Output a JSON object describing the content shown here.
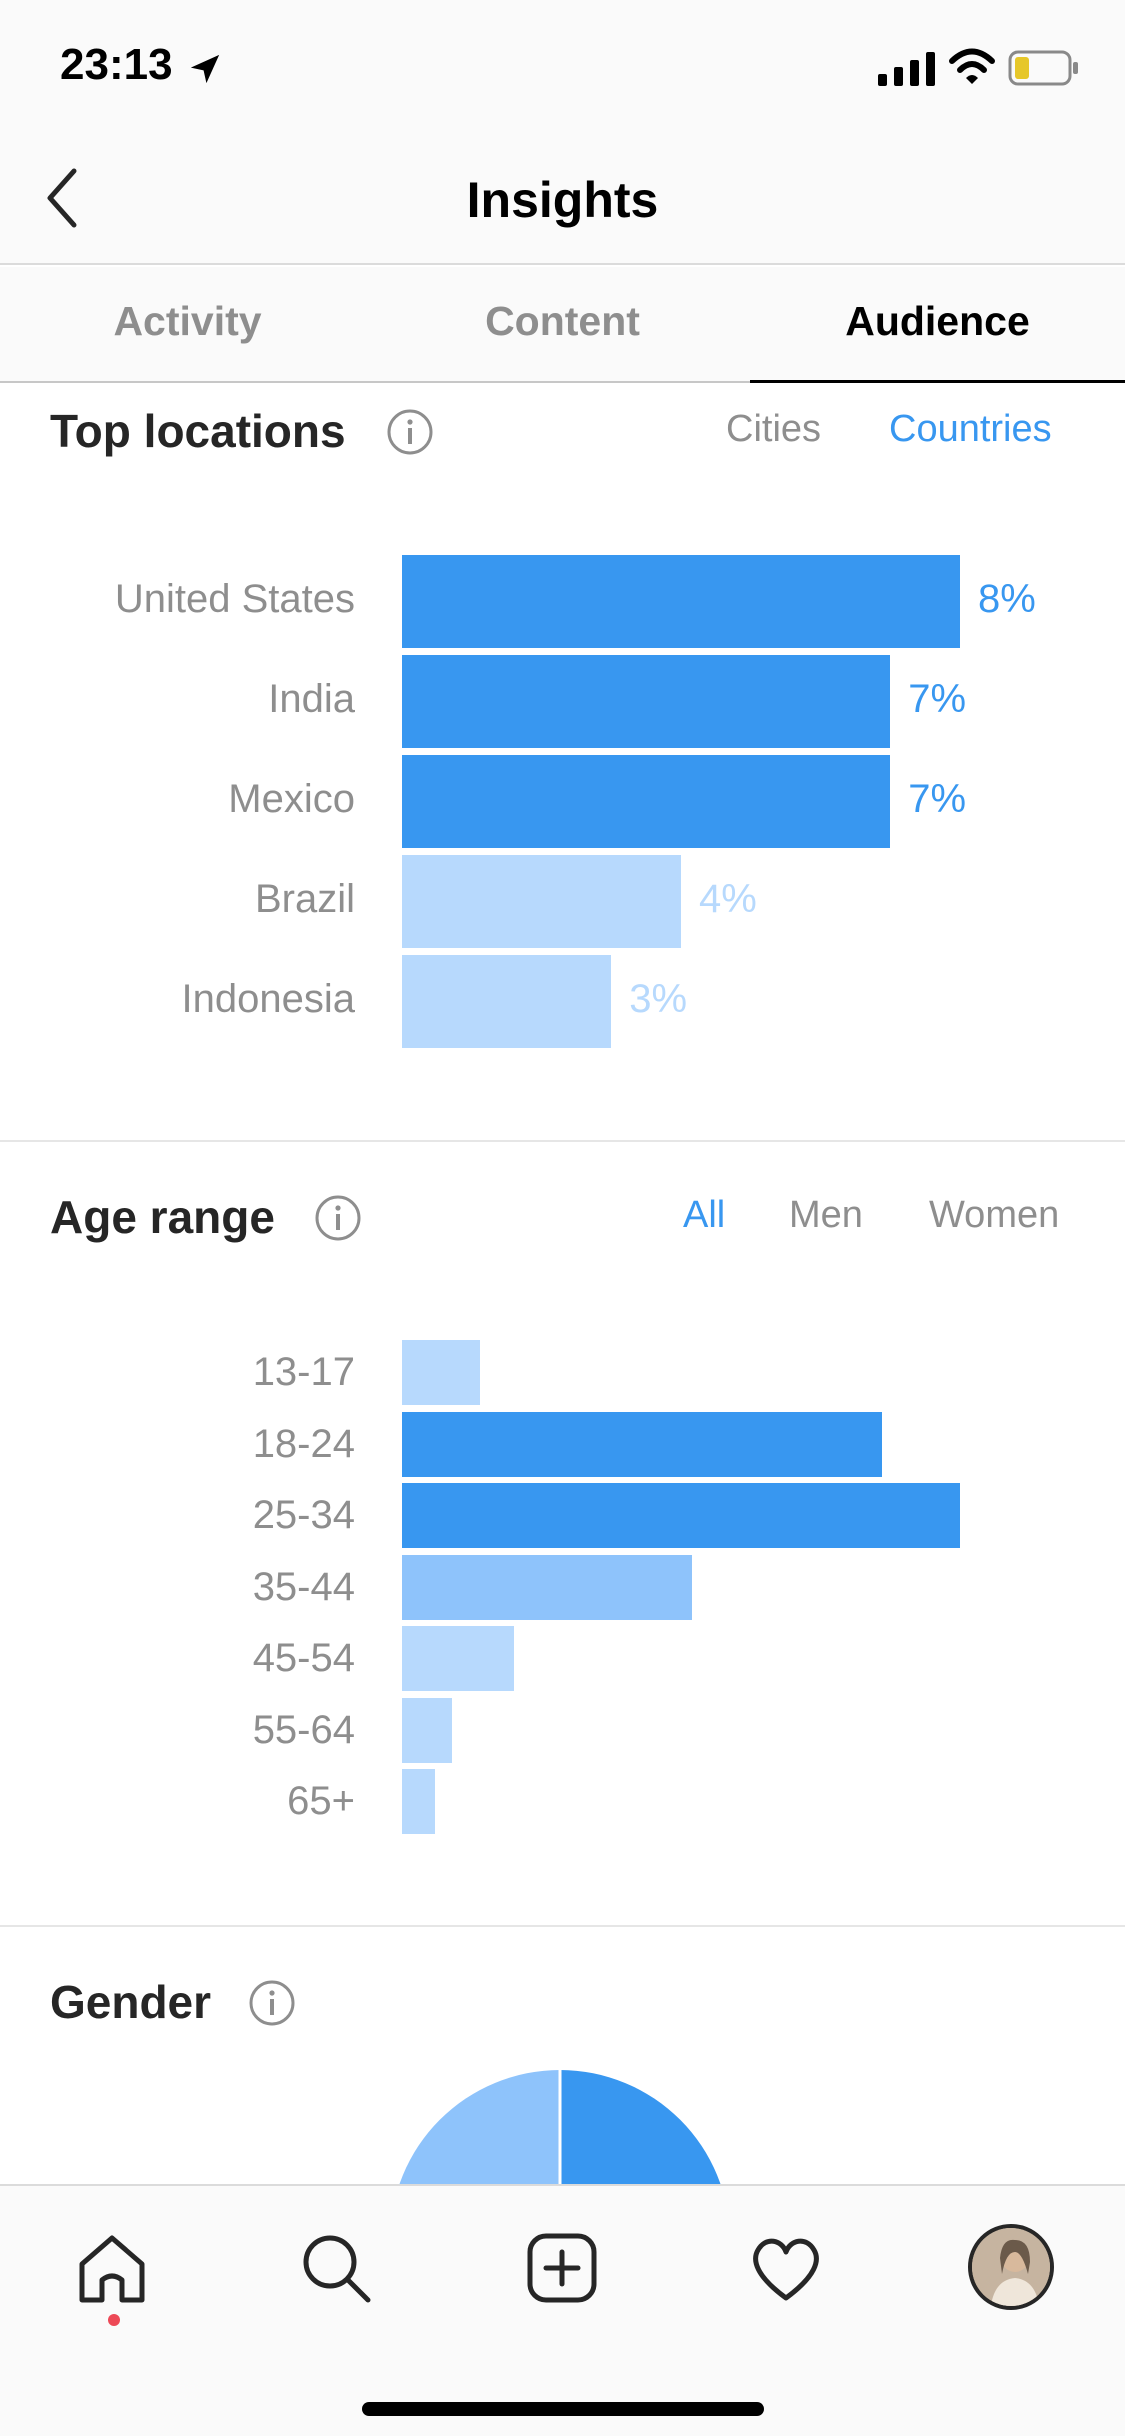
{
  "status": {
    "time": "23:13"
  },
  "nav": {
    "title": "Insights"
  },
  "tabs": [
    {
      "label": "Activity",
      "active": false
    },
    {
      "label": "Content",
      "active": false
    },
    {
      "label": "Audience",
      "active": true
    }
  ],
  "top_locations": {
    "title": "Top locations",
    "toggles": [
      {
        "label": "Cities",
        "active": false
      },
      {
        "label": "Countries",
        "active": true
      }
    ]
  },
  "age_range": {
    "title": "Age range",
    "toggles": [
      {
        "label": "All",
        "active": true
      },
      {
        "label": "Men",
        "active": false
      },
      {
        "label": "Women",
        "active": false
      }
    ]
  },
  "gender": {
    "title": "Gender",
    "split": [
      0.5,
      0.5
    ]
  },
  "colors": {
    "accent": "#3897f0",
    "bar_strong": "#3897f0",
    "bar_mid": "#8ec3fb",
    "bar_light": "#b7d9fd"
  },
  "chart_data": [
    {
      "type": "bar",
      "orientation": "horizontal",
      "categories": [
        "United States",
        "India",
        "Mexico",
        "Brazil",
        "Indonesia"
      ],
      "values": [
        8,
        7,
        7,
        4,
        3
      ],
      "value_labels": [
        "8%",
        "7%",
        "7%",
        "4%",
        "3%"
      ],
      "unit": "%"
    },
    {
      "type": "bar",
      "orientation": "horizontal",
      "categories": [
        "13-17",
        "18-24",
        "25-34",
        "35-44",
        "45-54",
        "55-64",
        "65+"
      ],
      "values": [
        1.4,
        8.6,
        10,
        5.2,
        2.0,
        0.9,
        0.6
      ],
      "unit": "relative"
    }
  ],
  "icons": {
    "back": "chevron-left-icon",
    "info": "info-icon",
    "bottom": [
      "home-icon",
      "search-icon",
      "add-post-icon",
      "heart-icon",
      "avatar"
    ]
  }
}
